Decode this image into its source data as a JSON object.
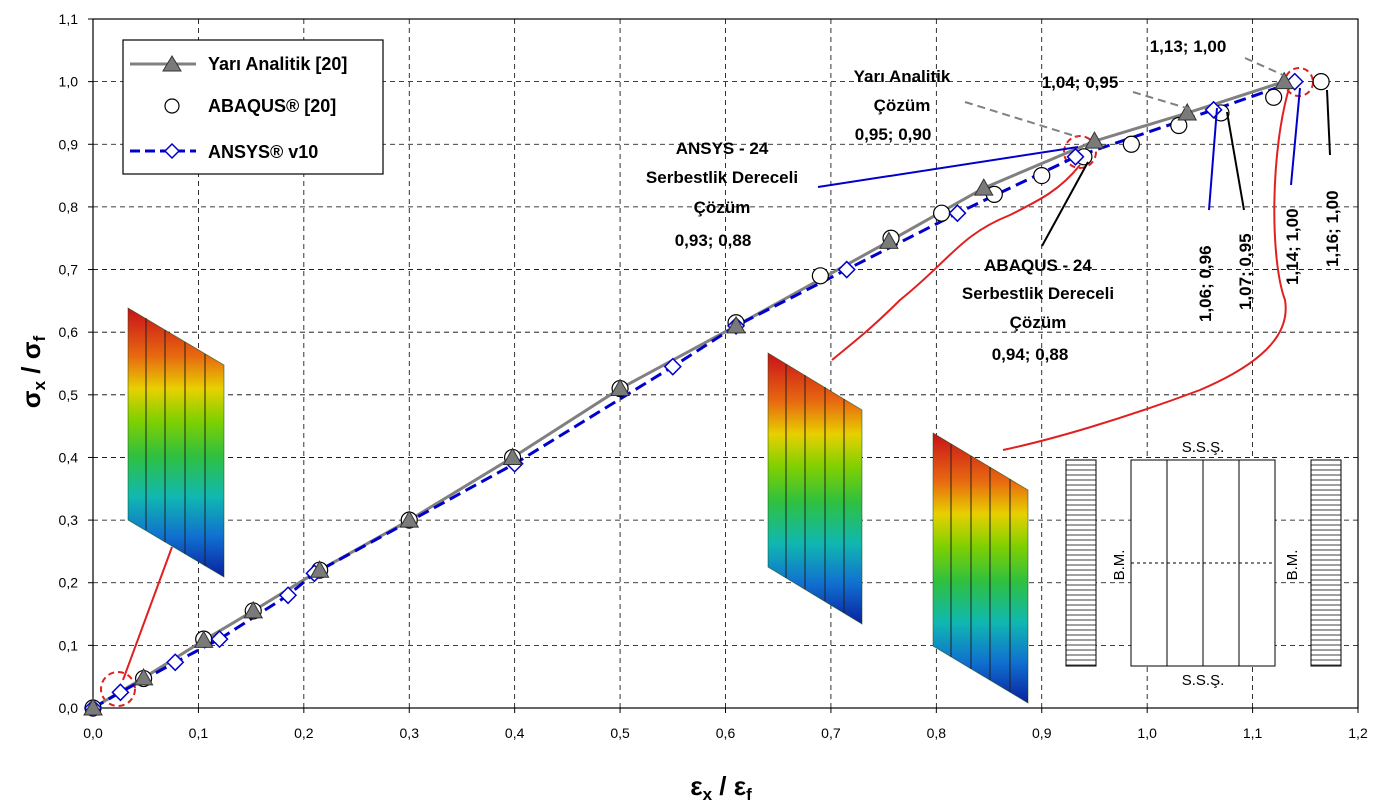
{
  "chart_data": {
    "type": "line",
    "xlabel": "εx / εf",
    "ylabel": "σx / σf",
    "xlim": [
      0,
      1.2
    ],
    "ylim": [
      0,
      1.1
    ],
    "x_ticks": [
      "0,0",
      "0,1",
      "0,2",
      "0,3",
      "0,4",
      "0,5",
      "0,6",
      "0,7",
      "0,8",
      "0,9",
      "1,0",
      "1,1",
      "1,2"
    ],
    "y_ticks": [
      "0,0",
      "0,1",
      "0,2",
      "0,3",
      "0,4",
      "0,5",
      "0,6",
      "0,7",
      "0,8",
      "0,9",
      "1,0",
      "1,1"
    ],
    "grid": "dashed",
    "legend_position": "top-left",
    "series": [
      {
        "name": "Yarı Analitik [20]",
        "color": "#808080",
        "marker": "triangle",
        "x": [
          0.0,
          0.048,
          0.105,
          0.152,
          0.215,
          0.3,
          0.398,
          0.5,
          0.61,
          0.755,
          0.845,
          0.95,
          1.038,
          1.13
        ],
        "y": [
          0.0,
          0.048,
          0.108,
          0.155,
          0.22,
          0.3,
          0.4,
          0.51,
          0.61,
          0.745,
          0.83,
          0.905,
          0.95,
          1.0
        ]
      },
      {
        "name": "ABAQUS® [20]",
        "color": "#000000",
        "marker": "circle",
        "x": [
          0.0,
          0.048,
          0.105,
          0.152,
          0.215,
          0.3,
          0.398,
          0.5,
          0.61,
          0.69,
          0.757,
          0.805,
          0.855,
          0.9,
          0.94,
          0.985,
          1.03,
          1.07,
          1.12,
          1.165
        ],
        "y": [
          0.0,
          0.047,
          0.11,
          0.155,
          0.22,
          0.3,
          0.4,
          0.51,
          0.615,
          0.69,
          0.75,
          0.79,
          0.82,
          0.85,
          0.88,
          0.9,
          0.93,
          0.95,
          0.975,
          1.0
        ]
      },
      {
        "name": "ANSYS® v10",
        "color": "#0000cc",
        "marker": "diamond",
        "x": [
          0.0,
          0.026,
          0.078,
          0.12,
          0.185,
          0.21,
          0.4,
          0.55,
          0.61,
          0.715,
          0.82,
          0.932,
          1.063,
          1.14
        ],
        "y": [
          0.0,
          0.025,
          0.073,
          0.11,
          0.18,
          0.215,
          0.39,
          0.545,
          0.61,
          0.7,
          0.79,
          0.88,
          0.955,
          1.0
        ]
      }
    ],
    "annotations": {
      "yari_title": [
        "Yarı Analitik",
        "Çözüm"
      ],
      "yari_val": "0,95; 0,90",
      "ansys_title": [
        "ANSYS - 24",
        "Serbestlik Dereceli",
        "Çözüm"
      ],
      "ansys_val": "0,93; 0,88",
      "abaqus_title": [
        "ABAQUS - 24",
        "Serbestlik Dereceli",
        "Çözüm"
      ],
      "abaqus_val": "0,94; 0,88",
      "p1": "1,04; 0,95",
      "p2": "1,13; 1,00",
      "v1": "1,06; 0,96",
      "v2": "1,07; 0,95",
      "v3": "1,14; 1,00",
      "v4": "1,16; 1,00"
    },
    "diagram": {
      "top": "S.S.Ş.",
      "bottom": "S.S.Ş.",
      "left": "B.M.",
      "right": "B.M."
    }
  }
}
